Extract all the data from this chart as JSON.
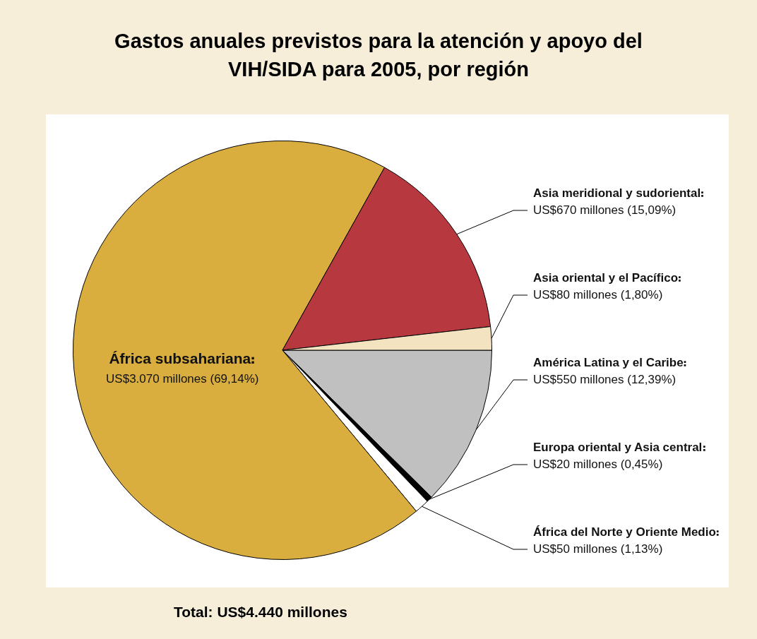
{
  "chart_data": {
    "type": "pie",
    "title": "Gastos anuales previstos para la atención y apoyo del VIH/SIDA para 2005, por región",
    "categories": [
      "América Latina y el Caribe",
      "Europa oriental y Asia central",
      "África del Norte y Oriente Medio",
      "África subsahariana",
      "Asia meridional y sudoriental",
      "Asia oriental y el Pacífico"
    ],
    "values": [
      550,
      20,
      50,
      3070,
      670,
      80
    ],
    "colors": [
      "#c0c0c0",
      "#000000",
      "#ffffff",
      "#d9ae3e",
      "#b83840",
      "#f3e3c0"
    ],
    "value_labels": [
      "US$550 millones (12,39%)",
      "US$20 millones (0,45%)",
      "US$50 millones (1,13%)",
      "US$3.070 millones (69,14%)",
      "US$670 millones (15,09%)",
      "US$80 millones (1,80%)"
    ],
    "legend": false,
    "annotations": [
      "Total: US$4.440 millones"
    ]
  }
}
